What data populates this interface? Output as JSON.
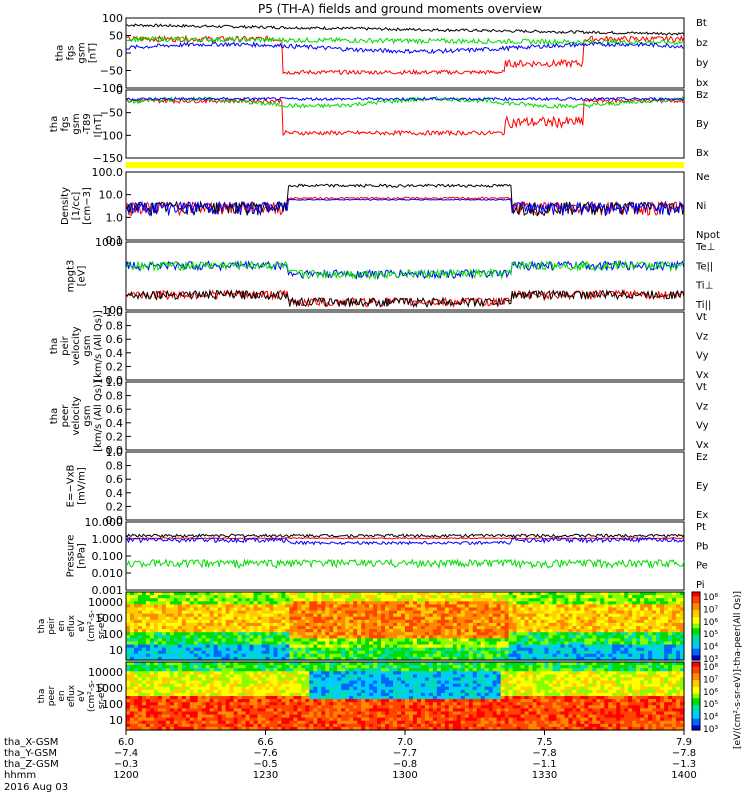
{
  "title": "P5 (TH-A) fields and ground moments overview",
  "colors": {
    "black": "#000000",
    "red": "#ff0000",
    "green": "#00dd00",
    "blue": "#0000ff",
    "yellow": "#ffff00"
  },
  "chart_data": [
    {
      "type": "line",
      "panel": "fgs",
      "ylabel": [
        "tha",
        "fgs",
        "gsm",
        "[nT]"
      ],
      "yticks": [
        "100",
        "50",
        "0",
        "−50",
        "−100"
      ],
      "ylim": [
        -100,
        100
      ],
      "series": [
        {
          "name": "Bt",
          "color": "#000000"
        },
        {
          "name": "bz",
          "color": "#ff0000"
        },
        {
          "name": "by",
          "color": "#00dd00"
        },
        {
          "name": "bx",
          "color": "#0000ff"
        }
      ]
    },
    {
      "type": "line",
      "panel": "fgs-minus-t89",
      "ylabel": [
        "tha",
        "fgs",
        "gsm",
        "-T89",
        "[nT]"
      ],
      "yticks": [
        "0",
        "−50",
        "−100",
        "−150"
      ],
      "ylim": [
        -170,
        20
      ],
      "series": [
        {
          "name": "Bz",
          "color": "#ff0000"
        },
        {
          "name": "By",
          "color": "#00dd00"
        },
        {
          "name": "Bx",
          "color": "#0000ff"
        }
      ]
    },
    {
      "type": "line",
      "panel": "density",
      "ylabel": [
        "Density",
        "[1/cc]",
        "[cm−3]"
      ],
      "yticks": [
        "100.0",
        "10.0",
        "1.0",
        "0.1"
      ],
      "scale": "log",
      "ylim": [
        0.1,
        100
      ],
      "series": [
        {
          "name": "Ne",
          "color": "#ff0000"
        },
        {
          "name": "Ni",
          "color": "#000000"
        },
        {
          "name": "Npot",
          "color": "#0000ff"
        }
      ]
    },
    {
      "type": "line",
      "panel": "temperature",
      "ylabel": [
        "mpgt3",
        "[eV]"
      ],
      "yticks": [
        "1000",
        "100"
      ],
      "scale": "log",
      "ylim": [
        30,
        8000
      ],
      "series": [
        {
          "name": "Te⊥",
          "color": "#ff0000"
        },
        {
          "name": "Te||",
          "color": "#000000"
        },
        {
          "name": "Ti⊥",
          "color": "#0000ff"
        },
        {
          "name": "Ti||",
          "color": "#00dd00"
        }
      ]
    },
    {
      "type": "line",
      "panel": "ion-velocity",
      "ylabel": [
        "tha",
        "peir",
        "velocity",
        "gsm",
        "[km/s (All Qs)]"
      ],
      "yticks": [
        "1.0",
        "0.8",
        "0.6",
        "0.4",
        "0.2",
        "0.0"
      ],
      "ylim": [
        0,
        1
      ],
      "series": [
        {
          "name": "Vt",
          "color": "#000000"
        },
        {
          "name": "Vz",
          "color": "#ff0000"
        },
        {
          "name": "Vy",
          "color": "#00dd00"
        },
        {
          "name": "Vx",
          "color": "#0000ff"
        }
      ]
    },
    {
      "type": "line",
      "panel": "electron-velocity",
      "ylabel": [
        "tha",
        "peer",
        "velocity",
        "gsm",
        "[km/s (All Qs)]"
      ],
      "yticks": [
        "1.0",
        "0.8",
        "0.6",
        "0.4",
        "0.2",
        "0.0"
      ],
      "ylim": [
        0,
        1
      ],
      "series": [
        {
          "name": "Vt",
          "color": "#000000"
        },
        {
          "name": "Vz",
          "color": "#ff0000"
        },
        {
          "name": "Vy",
          "color": "#00dd00"
        },
        {
          "name": "Vx",
          "color": "#0000ff"
        }
      ]
    },
    {
      "type": "line",
      "panel": "efield",
      "ylabel": [
        "E=−VxB",
        "[mV/m]"
      ],
      "yticks": [
        "1.0",
        "0.8",
        "0.6",
        "0.4",
        "0.2",
        "0.0"
      ],
      "ylim": [
        0,
        1
      ],
      "series": [
        {
          "name": "Ez",
          "color": "#ff0000"
        },
        {
          "name": "Ey",
          "color": "#00dd00"
        },
        {
          "name": "Ex",
          "color": "#0000ff"
        }
      ]
    },
    {
      "type": "line",
      "panel": "pressure",
      "ylabel": [
        "Pressure",
        "[nPa]"
      ],
      "yticks": [
        "10.000",
        "1.000",
        "0.100",
        "0.010",
        "0.001"
      ],
      "scale": "log",
      "ylim": [
        0.001,
        10
      ],
      "series": [
        {
          "name": "Pt",
          "color": "#000000"
        },
        {
          "name": "Pb",
          "color": "#ff0000"
        },
        {
          "name": "Pe",
          "color": "#00dd00"
        },
        {
          "name": "Pi",
          "color": "#0000ff"
        }
      ]
    },
    {
      "type": "heatmap",
      "panel": "ion-spectrogram",
      "ylabel": [
        "tha",
        "peir",
        "en",
        "eflux",
        "eV",
        "(cm²-s-",
        "sr-eV)"
      ],
      "yticks": [
        "10000",
        "1000",
        "100",
        "10"
      ],
      "scale": "log",
      "ylim": [
        5,
        25000
      ]
    },
    {
      "type": "heatmap",
      "panel": "electron-spectrogram",
      "ylabel": [
        "tha",
        "peer",
        "en",
        "eflux",
        "eV",
        "(cm²-s-",
        "sr-eV)"
      ],
      "yticks": [
        "10000",
        "1000",
        "100",
        "10"
      ],
      "scale": "log",
      "ylim": [
        5,
        25000
      ]
    }
  ],
  "colorbars": [
    {
      "ticks": [
        "10⁸",
        "10⁷",
        "10⁶",
        "10⁵",
        "10⁴",
        "10³"
      ]
    },
    {
      "ticks": [
        "10⁸",
        "10⁷",
        "10⁶",
        "10⁵",
        "10⁴",
        "10³"
      ]
    }
  ],
  "colorbar_label": "[eV/(cm²-s-sr-eV)]-tha-peer(All Qs)]",
  "x_axis": {
    "rows": [
      {
        "label": "tha_X-GSM",
        "values": [
          "6.0",
          "6.6",
          "7.0",
          "7.5",
          "7.9"
        ]
      },
      {
        "label": "tha_Y-GSM",
        "values": [
          "−7.4",
          "−7.6",
          "−7.7",
          "−7.8",
          "−7.8"
        ]
      },
      {
        "label": "tha_Z-GSM",
        "values": [
          "−0.3",
          "−0.5",
          "−0.8",
          "−1.1",
          "−1.3"
        ]
      },
      {
        "label": "hhmm",
        "values": [
          "1200",
          "1230",
          "1300",
          "1330",
          "1400"
        ]
      }
    ],
    "date": "2016 Aug 03"
  }
}
